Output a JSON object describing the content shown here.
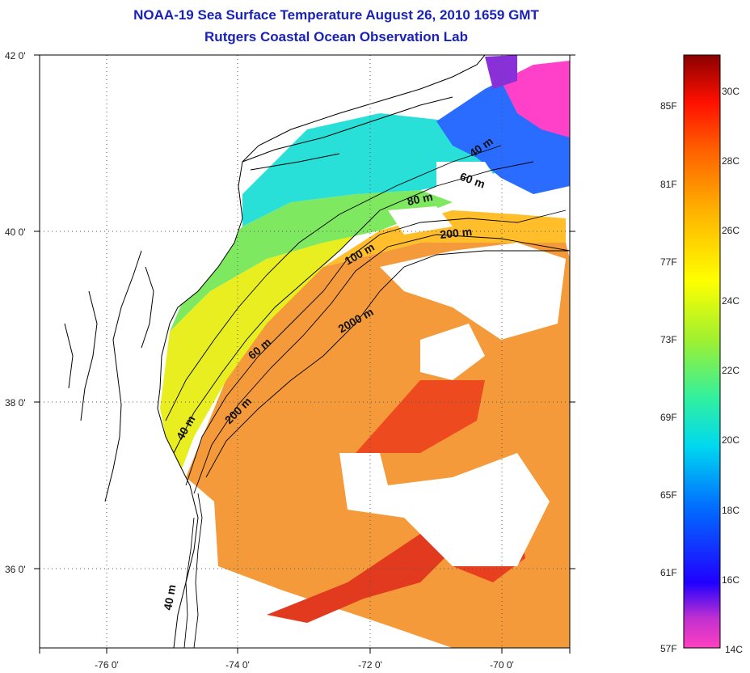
{
  "header": {
    "title": "NOAA-19 Sea Surface Temperature August 26, 2010 1659 GMT",
    "subtitle": "Rutgers Coastal Ocean Observation Lab"
  },
  "map": {
    "lat_ticks": [
      "42 0'",
      "40 0'",
      "38 0'",
      "36 0'"
    ],
    "lon_ticks": [
      "-76 0'",
      "-74 0'",
      "-72 0'",
      "-70 0'"
    ],
    "isobath_labels": [
      "40 m",
      "60 m",
      "80 m",
      "200 m",
      "100 m",
      "2000 m",
      "60 m",
      "200 m",
      "40 m",
      "40 m"
    ],
    "colors": {
      "land": "#ffffff",
      "coast": "#000000",
      "no_data": "#ffffff"
    }
  },
  "colorbar": {
    "f_labels": [
      "85F",
      "81F",
      "77F",
      "73F",
      "69F",
      "65F",
      "61F",
      "57F"
    ],
    "c_labels": [
      "30C",
      "28C",
      "26C",
      "24C",
      "22C",
      "20C",
      "18C",
      "16C",
      "14C"
    ],
    "gradient": [
      "#ff40c0",
      "#a020e0",
      "#2000ff",
      "#0060ff",
      "#00b0ff",
      "#00e8e0",
      "#40f080",
      "#b0f020",
      "#ffff00",
      "#ffc000",
      "#ff8000",
      "#ff3000",
      "#e00000",
      "#900000"
    ]
  }
}
